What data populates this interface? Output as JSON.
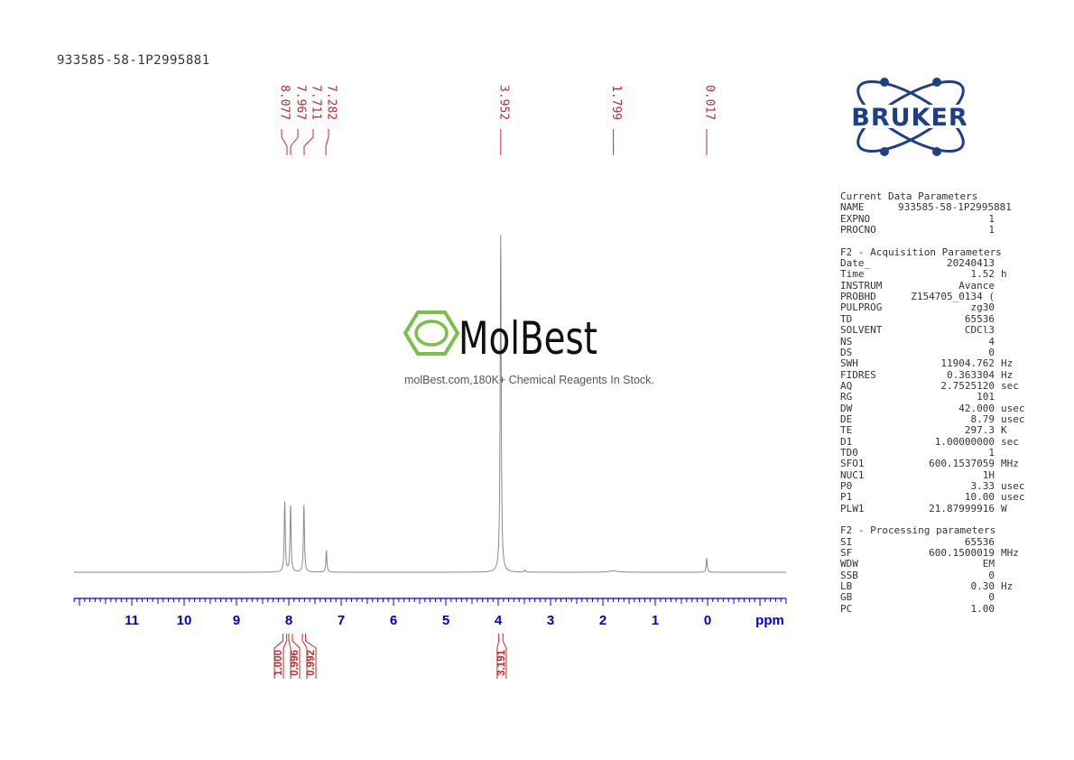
{
  "sample_name": "933585-58-1P2995881",
  "brand": {
    "logo_text": "BRUKER",
    "logo_color": "#1f3e8a",
    "logo_dot_color": "#1f3e8a"
  },
  "watermark": {
    "brand_mark": "MolBest",
    "ring_color": "#7ac143",
    "subtitle": "molBest.com,180K+ Chemical Reagents In Stock."
  },
  "colors": {
    "spectrum": "#8a8a8a",
    "axis": "#0000cc",
    "peak_labels": "#c0282d",
    "integrals": "#c0282d"
  },
  "parameters": {
    "current": {
      "title": "Current Data Parameters",
      "rows": [
        {
          "key": "NAME",
          "value": "933585-58-1P2995881",
          "unit": ""
        },
        {
          "key": "EXPNO",
          "value": "1",
          "unit": ""
        },
        {
          "key": "PROCNO",
          "value": "1",
          "unit": ""
        }
      ]
    },
    "acquisition": {
      "title": "F2 - Acquisition Parameters",
      "rows": [
        {
          "key": "Date_",
          "value": "20240413",
          "unit": ""
        },
        {
          "key": "Time",
          "value": "1.52",
          "unit": "h"
        },
        {
          "key": "INSTRUM",
          "value": "Avance",
          "unit": ""
        },
        {
          "key": "PROBHD",
          "value": "Z154705_0134 (",
          "unit": ""
        },
        {
          "key": "PULPROG",
          "value": "zg30",
          "unit": ""
        },
        {
          "key": "TD",
          "value": "65536",
          "unit": ""
        },
        {
          "key": "SOLVENT",
          "value": "CDCl3",
          "unit": ""
        },
        {
          "key": "NS",
          "value": "4",
          "unit": ""
        },
        {
          "key": "DS",
          "value": "0",
          "unit": ""
        },
        {
          "key": "SWH",
          "value": "11904.762",
          "unit": "Hz"
        },
        {
          "key": "FIDRES",
          "value": "0.363304",
          "unit": "Hz"
        },
        {
          "key": "AQ",
          "value": "2.7525120",
          "unit": "sec"
        },
        {
          "key": "RG",
          "value": "101",
          "unit": ""
        },
        {
          "key": "DW",
          "value": "42.000",
          "unit": "usec"
        },
        {
          "key": "DE",
          "value": "8.79",
          "unit": "usec"
        },
        {
          "key": "TE",
          "value": "297.3",
          "unit": "K"
        },
        {
          "key": "D1",
          "value": "1.00000000",
          "unit": "sec"
        },
        {
          "key": "TD0",
          "value": "1",
          "unit": ""
        },
        {
          "key": "SFO1",
          "value": "600.1537059",
          "unit": "MHz"
        },
        {
          "key": "NUC1",
          "value": "1H",
          "unit": ""
        },
        {
          "key": "P0",
          "value": "3.33",
          "unit": "usec"
        },
        {
          "key": "P1",
          "value": "10.00",
          "unit": "usec"
        },
        {
          "key": "PLW1",
          "value": "21.87999916",
          "unit": "W"
        }
      ]
    },
    "processing": {
      "title": "F2 - Processing parameters",
      "rows": [
        {
          "key": "SI",
          "value": "65536",
          "unit": ""
        },
        {
          "key": "SF",
          "value": "600.1500019",
          "unit": "MHz"
        },
        {
          "key": "WDW",
          "value": "EM",
          "unit": ""
        },
        {
          "key": "SSB",
          "value": "0",
          "unit": ""
        },
        {
          "key": "LB",
          "value": "0.30",
          "unit": "Hz"
        },
        {
          "key": "GB",
          "value": "0",
          "unit": ""
        },
        {
          "key": "PC",
          "value": "1.00",
          "unit": ""
        }
      ]
    }
  },
  "chart_data": {
    "type": "line",
    "xlabel": "ppm",
    "x_reversed": true,
    "xlim": [
      12.05,
      -1.5
    ],
    "ylim": [
      -0.02,
      1.0
    ],
    "tick_labels": [
      "11",
      "10",
      "9",
      "8",
      "7",
      "6",
      "5",
      "4",
      "3",
      "2",
      "1",
      "0"
    ],
    "tick_values": [
      11,
      10,
      9,
      8,
      7,
      6,
      5,
      4,
      3,
      2,
      1,
      0
    ],
    "peaks": [
      {
        "ppm": 8.077,
        "height": 0.205,
        "width": 0.012
      },
      {
        "ppm": 7.967,
        "height": 0.197,
        "width": 0.012
      },
      {
        "ppm": 7.711,
        "height": 0.197,
        "width": 0.012
      },
      {
        "ppm": 7.282,
        "height": 0.064,
        "width": 0.012
      },
      {
        "ppm": 3.952,
        "height": 1.0,
        "width": 0.012
      },
      {
        "ppm": 3.49,
        "height": 0.006,
        "width": 0.015
      },
      {
        "ppm": 1.799,
        "height": 0.004,
        "width": 0.1
      },
      {
        "ppm": 0.017,
        "height": 0.042,
        "width": 0.012
      }
    ],
    "peak_labels": [
      "8.077",
      "7.967",
      "7.711",
      "7.282",
      "3.952",
      "1.799",
      "0.017"
    ],
    "integrals": [
      {
        "label": "1.000",
        "from": 8.11,
        "to": 8.04
      },
      {
        "label": "0.996",
        "from": 8.0,
        "to": 7.93
      },
      {
        "label": "0.992",
        "from": 7.74,
        "to": 7.68
      },
      {
        "label": "3.191",
        "from": 3.99,
        "to": 3.91
      }
    ]
  }
}
